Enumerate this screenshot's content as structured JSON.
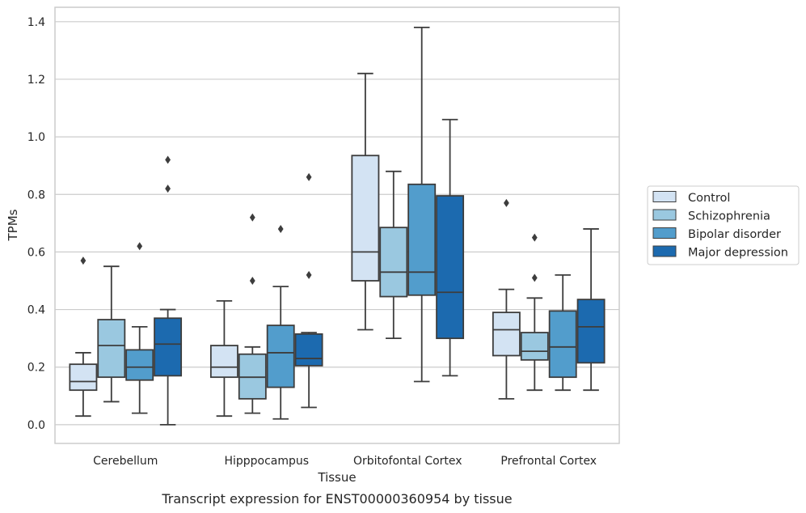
{
  "chart_data": {
    "type": "box",
    "caption": "Transcript expression for ENST00000360954 by tissue",
    "xlabel": "Tissue",
    "ylabel": "TPMs",
    "ylim": [
      -0.065,
      1.45
    ],
    "yticks": [
      "0.0",
      "0.2",
      "0.4",
      "0.6",
      "0.8",
      "1.0",
      "1.2",
      "1.4"
    ],
    "ytick_values": [
      0,
      0.2,
      0.4,
      0.6,
      0.8,
      1.0,
      1.2,
      1.4
    ],
    "grid": "horizontal",
    "legend_position": "right",
    "categories": [
      "Cerebellum",
      "Hipppocampus",
      "Orbitofontal Cortex",
      "Prefrontal Cortex"
    ],
    "series": [
      {
        "name": "Control",
        "color": "#d3e3f3",
        "boxes": [
          {
            "whisker_low": 0.03,
            "q1": 0.12,
            "median": 0.15,
            "q3": 0.21,
            "whisker_high": 0.25,
            "outliers": [
              0.57
            ]
          },
          {
            "whisker_low": 0.03,
            "q1": 0.165,
            "median": 0.2,
            "q3": 0.275,
            "whisker_high": 0.43,
            "outliers": []
          },
          {
            "whisker_low": 0.33,
            "q1": 0.5,
            "median": 0.6,
            "q3": 0.935,
            "whisker_high": 1.22,
            "outliers": []
          },
          {
            "whisker_low": 0.09,
            "q1": 0.24,
            "median": 0.33,
            "q3": 0.39,
            "whisker_high": 0.47,
            "outliers": [
              0.77
            ]
          }
        ]
      },
      {
        "name": "Schizophrenia",
        "color": "#9ac8e0",
        "boxes": [
          {
            "whisker_low": 0.08,
            "q1": 0.165,
            "median": 0.275,
            "q3": 0.365,
            "whisker_high": 0.55,
            "outliers": []
          },
          {
            "whisker_low": 0.04,
            "q1": 0.09,
            "median": 0.165,
            "q3": 0.245,
            "whisker_high": 0.27,
            "outliers": [
              0.5,
              0.72
            ]
          },
          {
            "whisker_low": 0.3,
            "q1": 0.445,
            "median": 0.53,
            "q3": 0.685,
            "whisker_high": 0.88,
            "outliers": []
          },
          {
            "whisker_low": 0.12,
            "q1": 0.225,
            "median": 0.255,
            "q3": 0.32,
            "whisker_high": 0.44,
            "outliers": [
              0.51,
              0.65
            ]
          }
        ]
      },
      {
        "name": "Bipolar disorder",
        "color": "#529dcc",
        "boxes": [
          {
            "whisker_low": 0.04,
            "q1": 0.155,
            "median": 0.2,
            "q3": 0.26,
            "whisker_high": 0.34,
            "outliers": [
              0.62
            ]
          },
          {
            "whisker_low": 0.02,
            "q1": 0.13,
            "median": 0.25,
            "q3": 0.345,
            "whisker_high": 0.48,
            "outliers": [
              0.68
            ]
          },
          {
            "whisker_low": 0.15,
            "q1": 0.45,
            "median": 0.53,
            "q3": 0.835,
            "whisker_high": 1.38,
            "outliers": []
          },
          {
            "whisker_low": 0.12,
            "q1": 0.165,
            "median": 0.27,
            "q3": 0.395,
            "whisker_high": 0.52,
            "outliers": []
          }
        ]
      },
      {
        "name": "Major depression",
        "color": "#1c6aaf",
        "boxes": [
          {
            "whisker_low": 0.0,
            "q1": 0.17,
            "median": 0.28,
            "q3": 0.37,
            "whisker_high": 0.4,
            "outliers": [
              0.82,
              0.92
            ]
          },
          {
            "whisker_low": 0.06,
            "q1": 0.205,
            "median": 0.23,
            "q3": 0.315,
            "whisker_high": 0.32,
            "outliers": [
              0.52,
              0.86
            ]
          },
          {
            "whisker_low": 0.17,
            "q1": 0.3,
            "median": 0.46,
            "q3": 0.795,
            "whisker_high": 1.06,
            "outliers": []
          },
          {
            "whisker_low": 0.12,
            "q1": 0.215,
            "median": 0.34,
            "q3": 0.435,
            "whisker_high": 0.68,
            "outliers": []
          }
        ]
      }
    ]
  }
}
